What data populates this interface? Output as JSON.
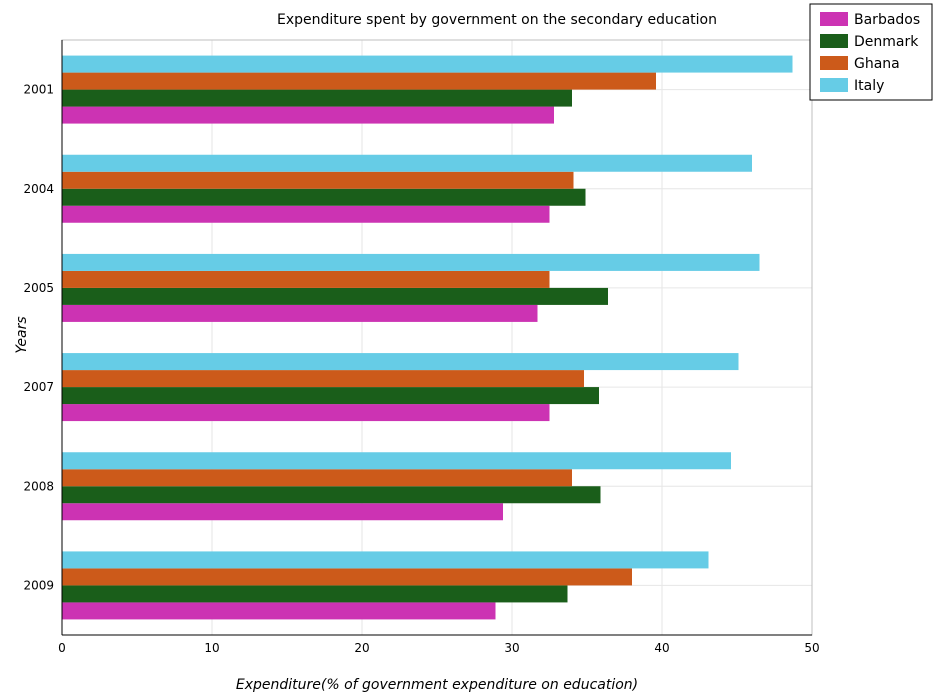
{
  "chart_data": {
    "type": "bar",
    "orientation": "horizontal",
    "title": "Expenditure spent by government on the secondary education",
    "xlabel": "Expenditure(% of government expenditure on education)",
    "ylabel": "Years",
    "xlim": [
      0,
      50
    ],
    "xticks": [
      0,
      10,
      20,
      30,
      40,
      50
    ],
    "grid": true,
    "legend_position": "top-right",
    "categories": [
      "2001",
      "2004",
      "2005",
      "2007",
      "2008",
      "2009"
    ],
    "series": [
      {
        "name": "Barbados",
        "color": "#cc33b3",
        "values": [
          32.8,
          32.5,
          31.7,
          32.5,
          29.4,
          28.9
        ]
      },
      {
        "name": "Denmark",
        "color": "#1a5e1a",
        "values": [
          34.0,
          34.9,
          36.4,
          35.8,
          35.9,
          33.7
        ]
      },
      {
        "name": "Ghana",
        "color": "#cc5a1a",
        "values": [
          39.6,
          34.1,
          32.5,
          34.8,
          34.0,
          38.0
        ]
      },
      {
        "name": "Italy",
        "color": "#66cce6",
        "values": [
          48.7,
          46.0,
          46.5,
          45.1,
          44.6,
          43.1
        ]
      }
    ]
  }
}
